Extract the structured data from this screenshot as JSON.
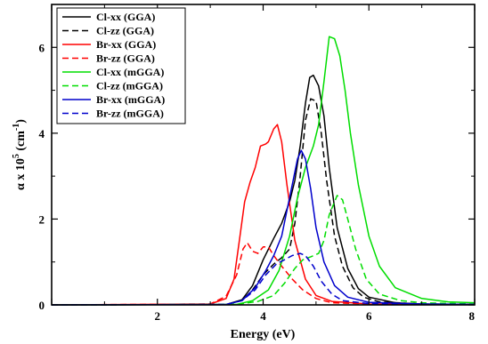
{
  "chart_data": {
    "type": "line",
    "xlabel": "Energy (eV)",
    "ylabel_prefix": "α x 10",
    "ylabel_exp": "5",
    "ylabel_unit_open": " (cm",
    "ylabel_unit_exp": "-1",
    "ylabel_unit_close": ")",
    "xlim": [
      0,
      8
    ],
    "ylim": [
      0,
      7
    ],
    "x_ticks": [
      2,
      4,
      6,
      8
    ],
    "y_ticks": [
      0,
      2,
      4,
      6
    ],
    "grid": false,
    "legend_position": "top-left",
    "series": [
      {
        "name": "Cl-xx (GGA)",
        "color": "#000000",
        "dash": "solid",
        "points": [
          [
            0,
            0
          ],
          [
            3.3,
            0.01
          ],
          [
            3.6,
            0.12
          ],
          [
            3.8,
            0.45
          ],
          [
            4.0,
            1.05
          ],
          [
            4.2,
            1.55
          ],
          [
            4.35,
            1.9
          ],
          [
            4.5,
            2.4
          ],
          [
            4.6,
            2.9
          ],
          [
            4.7,
            3.7
          ],
          [
            4.8,
            4.7
          ],
          [
            4.88,
            5.3
          ],
          [
            4.95,
            5.35
          ],
          [
            5.05,
            5.1
          ],
          [
            5.15,
            4.4
          ],
          [
            5.25,
            3.2
          ],
          [
            5.4,
            1.8
          ],
          [
            5.6,
            0.85
          ],
          [
            5.8,
            0.38
          ],
          [
            6.0,
            0.18
          ],
          [
            6.5,
            0.05
          ],
          [
            7.0,
            0.02
          ],
          [
            8,
            0.01
          ]
        ]
      },
      {
        "name": "Cl-zz (GGA)",
        "color": "#000000",
        "dash": "dashed",
        "points": [
          [
            0,
            0
          ],
          [
            3.3,
            0.01
          ],
          [
            3.6,
            0.1
          ],
          [
            3.8,
            0.35
          ],
          [
            4.0,
            0.7
          ],
          [
            4.2,
            0.95
          ],
          [
            4.35,
            1.1
          ],
          [
            4.5,
            1.3
          ],
          [
            4.6,
            1.9
          ],
          [
            4.7,
            3.0
          ],
          [
            4.8,
            4.3
          ],
          [
            4.9,
            4.8
          ],
          [
            5.0,
            4.75
          ],
          [
            5.1,
            4.0
          ],
          [
            5.2,
            2.9
          ],
          [
            5.35,
            1.6
          ],
          [
            5.5,
            0.9
          ],
          [
            5.7,
            0.4
          ],
          [
            5.9,
            0.18
          ],
          [
            6.2,
            0.07
          ],
          [
            7.0,
            0.02
          ],
          [
            8,
            0.01
          ]
        ]
      },
      {
        "name": "Br-xx (GGA)",
        "color": "#ff0000",
        "dash": "solid",
        "points": [
          [
            0,
            0
          ],
          [
            3.0,
            0.02
          ],
          [
            3.3,
            0.15
          ],
          [
            3.45,
            0.6
          ],
          [
            3.55,
            1.5
          ],
          [
            3.65,
            2.4
          ],
          [
            3.75,
            2.85
          ],
          [
            3.85,
            3.2
          ],
          [
            3.95,
            3.7
          ],
          [
            4.05,
            3.75
          ],
          [
            4.1,
            3.8
          ],
          [
            4.2,
            4.1
          ],
          [
            4.27,
            4.2
          ],
          [
            4.35,
            3.8
          ],
          [
            4.45,
            2.8
          ],
          [
            4.6,
            1.5
          ],
          [
            4.8,
            0.6
          ],
          [
            5.0,
            0.22
          ],
          [
            5.3,
            0.08
          ],
          [
            6.0,
            0.02
          ],
          [
            8,
            0.01
          ]
        ]
      },
      {
        "name": "Br-zz (GGA)",
        "color": "#ff0000",
        "dash": "dashed",
        "points": [
          [
            0,
            0
          ],
          [
            3.0,
            0.02
          ],
          [
            3.3,
            0.2
          ],
          [
            3.5,
            0.7
          ],
          [
            3.62,
            1.3
          ],
          [
            3.7,
            1.45
          ],
          [
            3.8,
            1.25
          ],
          [
            3.9,
            1.2
          ],
          [
            4.0,
            1.35
          ],
          [
            4.1,
            1.35
          ],
          [
            4.2,
            1.15
          ],
          [
            4.35,
            0.9
          ],
          [
            4.55,
            0.6
          ],
          [
            4.75,
            0.35
          ],
          [
            5.0,
            0.15
          ],
          [
            5.3,
            0.05
          ],
          [
            6.0,
            0.02
          ],
          [
            8,
            0.01
          ]
        ]
      },
      {
        "name": "Cl-xx (mGGA)",
        "color": "#00dd00",
        "dash": "solid",
        "points": [
          [
            0,
            0
          ],
          [
            3.5,
            0.01
          ],
          [
            3.8,
            0.1
          ],
          [
            4.1,
            0.35
          ],
          [
            4.3,
            0.8
          ],
          [
            4.5,
            1.6
          ],
          [
            4.65,
            2.5
          ],
          [
            4.8,
            3.2
          ],
          [
            4.95,
            3.7
          ],
          [
            5.05,
            4.2
          ],
          [
            5.15,
            5.2
          ],
          [
            5.25,
            6.25
          ],
          [
            5.35,
            6.2
          ],
          [
            5.45,
            5.8
          ],
          [
            5.55,
            5.0
          ],
          [
            5.65,
            4.0
          ],
          [
            5.8,
            2.8
          ],
          [
            6.0,
            1.6
          ],
          [
            6.2,
            0.9
          ],
          [
            6.5,
            0.4
          ],
          [
            7.0,
            0.15
          ],
          [
            7.5,
            0.07
          ],
          [
            8,
            0.05
          ]
        ]
      },
      {
        "name": "Cl-zz (mGGA)",
        "color": "#00dd00",
        "dash": "dashed",
        "points": [
          [
            0,
            0
          ],
          [
            3.5,
            0.01
          ],
          [
            3.9,
            0.08
          ],
          [
            4.2,
            0.22
          ],
          [
            4.4,
            0.5
          ],
          [
            4.6,
            0.85
          ],
          [
            4.75,
            1.05
          ],
          [
            4.9,
            1.12
          ],
          [
            5.05,
            1.2
          ],
          [
            5.15,
            1.5
          ],
          [
            5.25,
            2.1
          ],
          [
            5.4,
            2.55
          ],
          [
            5.5,
            2.45
          ],
          [
            5.6,
            2.0
          ],
          [
            5.75,
            1.3
          ],
          [
            5.95,
            0.6
          ],
          [
            6.2,
            0.25
          ],
          [
            6.6,
            0.1
          ],
          [
            7.0,
            0.05
          ],
          [
            8,
            0.02
          ]
        ]
      },
      {
        "name": "Br-xx (mGGA)",
        "color": "#0000cc",
        "dash": "solid",
        "points": [
          [
            0,
            0
          ],
          [
            3.3,
            0.01
          ],
          [
            3.6,
            0.1
          ],
          [
            3.85,
            0.4
          ],
          [
            4.05,
            0.8
          ],
          [
            4.2,
            1.15
          ],
          [
            4.35,
            1.6
          ],
          [
            4.45,
            2.2
          ],
          [
            4.55,
            2.8
          ],
          [
            4.65,
            3.4
          ],
          [
            4.72,
            3.6
          ],
          [
            4.8,
            3.4
          ],
          [
            4.9,
            2.7
          ],
          [
            5.0,
            1.8
          ],
          [
            5.15,
            1.0
          ],
          [
            5.35,
            0.45
          ],
          [
            5.6,
            0.18
          ],
          [
            6.0,
            0.06
          ],
          [
            7.0,
            0.02
          ],
          [
            8,
            0.01
          ]
        ]
      },
      {
        "name": "Br-zz (mGGA)",
        "color": "#0000cc",
        "dash": "dashed",
        "points": [
          [
            0,
            0
          ],
          [
            3.3,
            0.01
          ],
          [
            3.6,
            0.1
          ],
          [
            3.85,
            0.35
          ],
          [
            4.05,
            0.7
          ],
          [
            4.25,
            0.95
          ],
          [
            4.4,
            1.05
          ],
          [
            4.55,
            1.15
          ],
          [
            4.7,
            1.2
          ],
          [
            4.8,
            1.15
          ],
          [
            4.95,
            0.9
          ],
          [
            5.1,
            0.55
          ],
          [
            5.3,
            0.25
          ],
          [
            5.5,
            0.1
          ],
          [
            6.0,
            0.03
          ],
          [
            8,
            0.01
          ]
        ]
      }
    ]
  }
}
